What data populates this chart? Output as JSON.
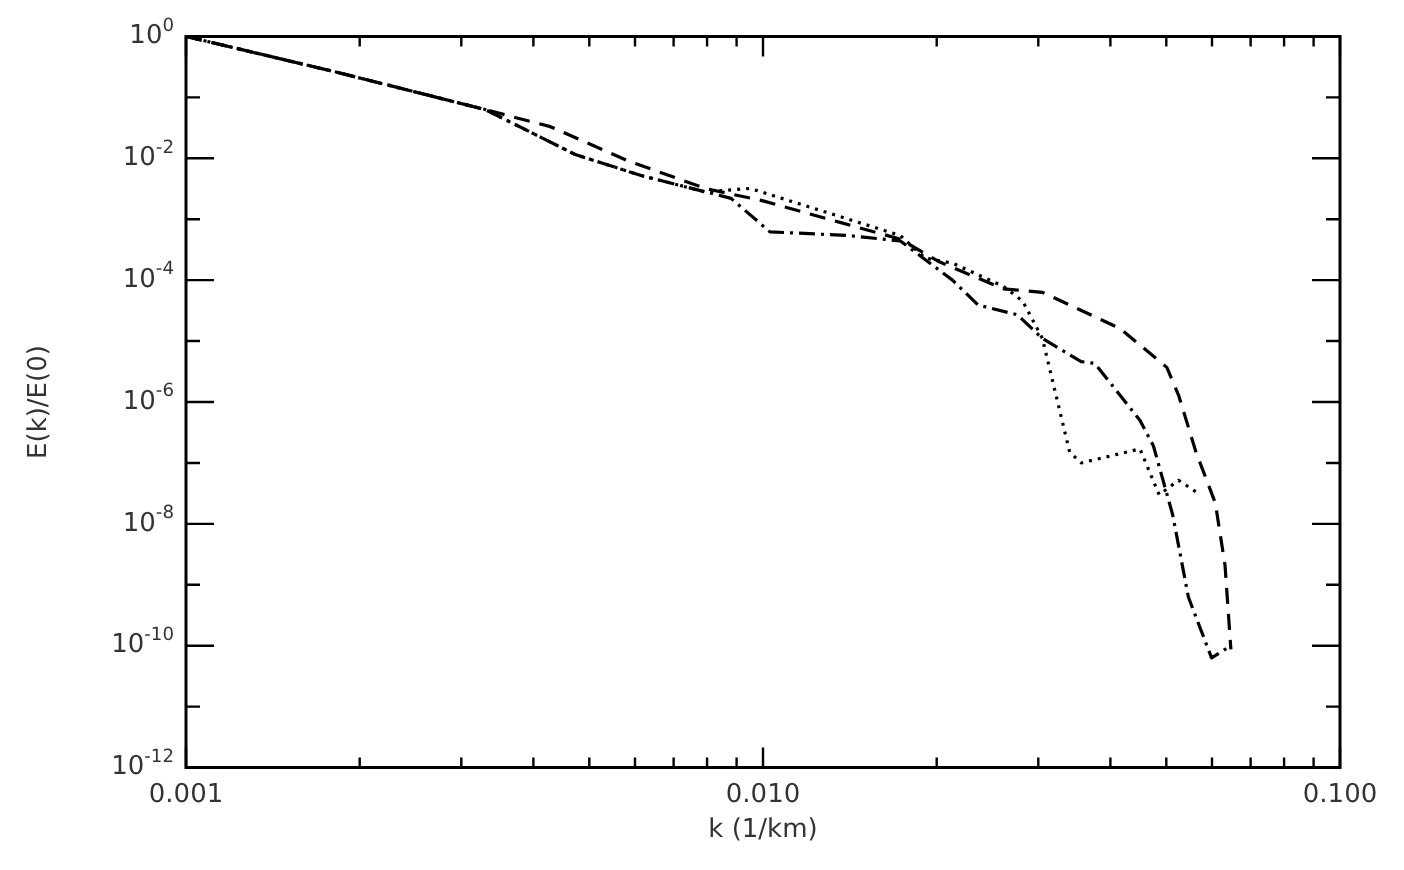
{
  "chart_data": {
    "type": "line",
    "xlabel": "k (1/km)",
    "ylabel": "E(k)/E(0)",
    "log": "xy",
    "grid": false,
    "legend": false,
    "marker": "none",
    "xlim": [
      0.001,
      0.1
    ],
    "ylim": [
      1e-12,
      1
    ],
    "xticks": [
      {
        "value": 0.001,
        "label": "0.001"
      },
      {
        "value": 0.002,
        "label": null
      },
      {
        "value": 0.003,
        "label": null
      },
      {
        "value": 0.004,
        "label": null
      },
      {
        "value": 0.005,
        "label": null
      },
      {
        "value": 0.006,
        "label": null
      },
      {
        "value": 0.007,
        "label": null
      },
      {
        "value": 0.008,
        "label": null
      },
      {
        "value": 0.009,
        "label": null
      },
      {
        "value": 0.01,
        "label": "0.010"
      },
      {
        "value": 0.02,
        "label": null
      },
      {
        "value": 0.03,
        "label": null
      },
      {
        "value": 0.04,
        "label": null
      },
      {
        "value": 0.05,
        "label": null
      },
      {
        "value": 0.06,
        "label": null
      },
      {
        "value": 0.07,
        "label": null
      },
      {
        "value": 0.08,
        "label": null
      },
      {
        "value": 0.09,
        "label": null
      },
      {
        "value": 0.1,
        "label": "0.100"
      }
    ],
    "yticks": [
      {
        "value": 1e-12,
        "label": "10$^{-12}$"
      },
      {
        "value": 1e-11,
        "label": null
      },
      {
        "value": 1e-10,
        "label": "10$^{-10}$"
      },
      {
        "value": 1e-09,
        "label": null
      },
      {
        "value": 1e-08,
        "label": "10$^{-8}$"
      },
      {
        "value": 1e-07,
        "label": null
      },
      {
        "value": 1e-06,
        "label": "10$^{-6}$"
      },
      {
        "value": 1e-05,
        "label": null
      },
      {
        "value": 0.0001,
        "label": "10$^{-4}$"
      },
      {
        "value": 0.001,
        "label": null
      },
      {
        "value": 0.01,
        "label": "10$^{-2}$"
      },
      {
        "value": 0.1,
        "label": null
      },
      {
        "value": 1,
        "label": "10$^{0}$"
      }
    ],
    "series": [
      {
        "color": "#000000",
        "line_style": "dashed",
        "x": [
          0.001,
          0.00182,
          0.0033,
          0.00428,
          0.00583,
          0.00794,
          0.01,
          0.0137,
          0.0173,
          0.0202,
          0.0261,
          0.0305,
          0.0376,
          0.0416,
          0.0501,
          0.0525,
          0.0563,
          0.0608,
          0.0632,
          0.0647
        ],
        "values": [
          1,
          0.26,
          0.063,
          0.033,
          0.0091,
          0.0032,
          0.002,
          0.00087,
          0.00047,
          0.0002,
          7.2e-05,
          6.3e-05,
          2.5e-05,
          1.6e-05,
          3.7e-06,
          1.3e-06,
          1.5e-07,
          2.2e-08,
          2.1e-09,
          8.7e-11
        ]
      },
      {
        "color": "#000000",
        "line_style": "dotted",
        "x": [
          0.001,
          0.00182,
          0.0033,
          0.00473,
          0.00615,
          0.00794,
          0.0095,
          0.0173,
          0.0191,
          0.0213,
          0.0261,
          0.0282,
          0.0305,
          0.034,
          0.0356,
          0.045,
          0.0486,
          0.0525,
          0.0567
        ],
        "values": [
          1,
          0.26,
          0.063,
          0.0115,
          0.0052,
          0.0028,
          0.0032,
          0.00054,
          0.00023,
          0.00019,
          7.9e-05,
          4.5e-05,
          1.1e-05,
          1.5e-07,
          1e-07,
          1.7e-07,
          3e-08,
          5.2e-08,
          3.2e-08
        ]
      },
      {
        "color": "#000000",
        "line_style": "dashdot",
        "x": [
          0.001,
          0.00182,
          0.0033,
          0.00473,
          0.00615,
          0.0088,
          0.01028,
          0.01403,
          0.0173,
          0.0213,
          0.0236,
          0.0276,
          0.0305,
          0.0356,
          0.0376,
          0.045,
          0.0475,
          0.0513,
          0.0546,
          0.0599,
          0.0647
        ],
        "values": [
          1,
          0.26,
          0.063,
          0.0115,
          0.0052,
          0.0022,
          0.00062,
          0.00054,
          0.00044,
          0.0001,
          3.9e-05,
          2.7e-05,
          1.1e-05,
          4.6e-06,
          4.3e-06,
          5e-07,
          1.9e-07,
          1.4e-08,
          6.3e-10,
          6.3e-11,
          1e-10
        ]
      }
    ]
  }
}
